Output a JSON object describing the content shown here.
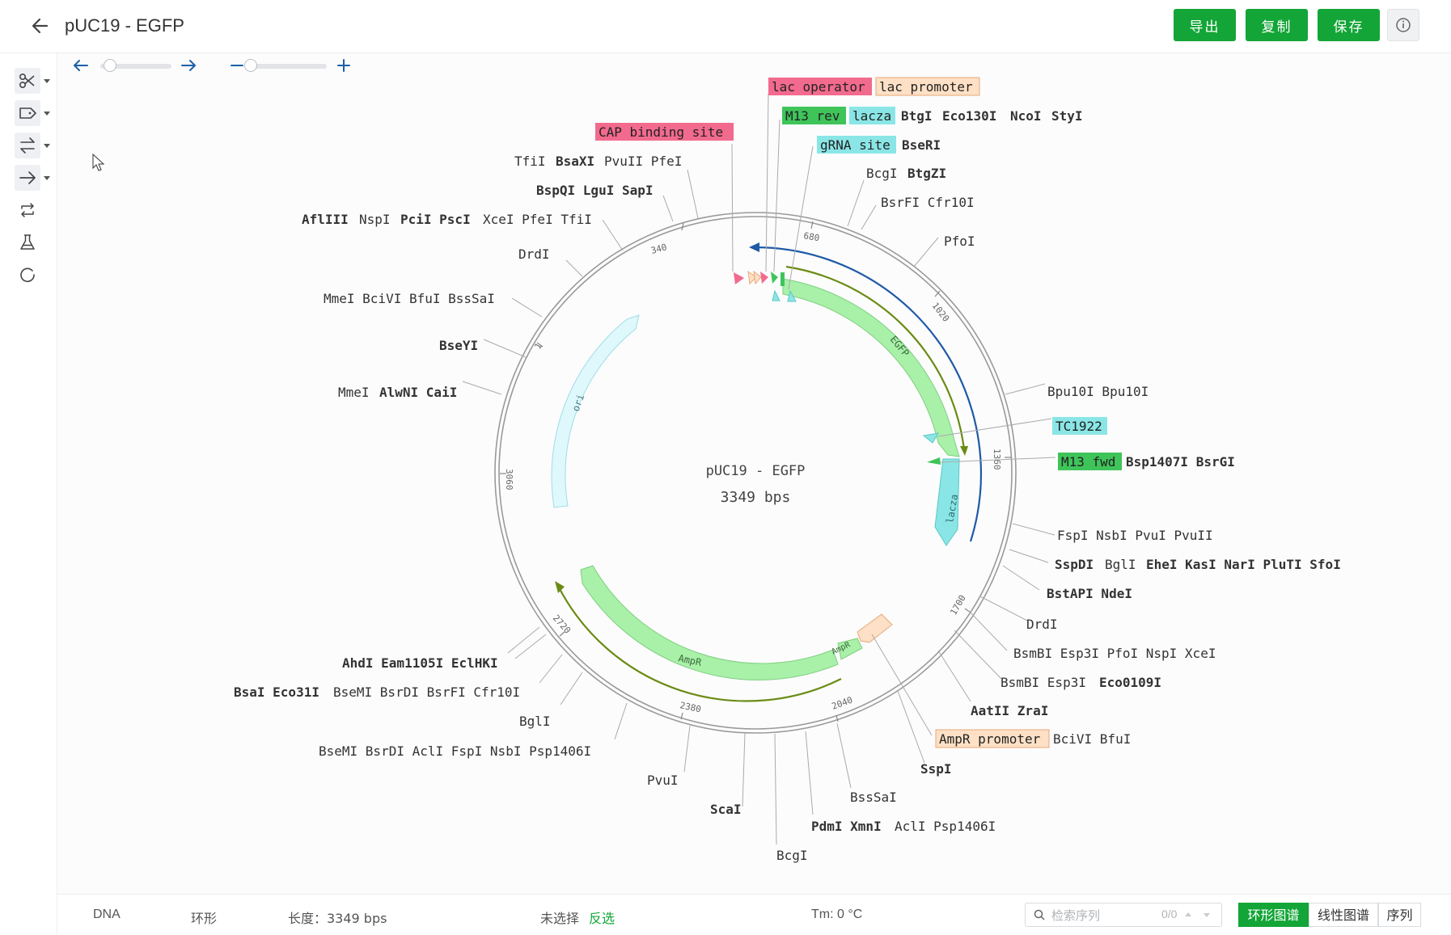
{
  "header": {
    "title": "pUC19 - EGFP",
    "export_label": "导出",
    "copy_label": "复制",
    "save_label": "保存"
  },
  "colors": {
    "primary": "#13a537",
    "lac_operator": "#f26a8d",
    "lac_promoter": "#fde0c5",
    "m13": "#3fc45a",
    "lacza": "#8ae6e6",
    "cap_binding": "#f26a8d",
    "grna": "#8ae6e6",
    "feature_green": "#a9f0a9",
    "ori": "#dff8fb",
    "primer_blue": "#1f5aa6",
    "primer_olive": "#6b8c14"
  },
  "map": {
    "name": "pUC19 - EGFP",
    "length_label": "3349 bps",
    "ticks": [
      "340",
      "680",
      "1020",
      "1360",
      "1700",
      "2040",
      "2380",
      "2720",
      "3060",
      "1"
    ],
    "features": [
      "EGFP",
      "lacza",
      "ori",
      "AmpR",
      "AmpR"
    ],
    "annotations": {
      "lac_operator": "lac operator",
      "lac_promoter": "lac promoter",
      "m13_rev": "M13 rev",
      "lacza": "lacza",
      "cap_binding": "CAP binding site",
      "grna": "gRNA site",
      "tc1922": "TC1922",
      "m13_fwd": "M13 fwd",
      "ampr_promoter": "AmpR promoter"
    },
    "enzymes": {
      "btgi": "BtgI",
      "eco130i": "Eco130I",
      "ncoi": "NcoI",
      "styi": "StyI",
      "bseri": "BseRI",
      "bcgi_top": "BcgI",
      "btgzi": "BtgZI",
      "bsrfi_cfr10i": "BsrFI Cfr10I",
      "pfoi_top": "PfoI",
      "tfii": "TfiI",
      "bsaxi": "BsaXI",
      "pvuii_pfei": "PvuII PfeI",
      "bspqi_lgui_sapi": "BspQI LguI SapI",
      "afliii": "AflIII",
      "nspi_top": "NspI",
      "pcii_psci": "PciI PscI",
      "xcei_pfei_tfii": "XceI PfeI TfiI",
      "drdi_left": "DrdI",
      "mmei_group": "MmeI BciVI BfuI BssSaI",
      "bseyi": "BseYI",
      "mmei_2": "MmeI",
      "alwni_caii": "AlwNI CaiI",
      "bpu10i": "Bpu10I Bpu10I",
      "bsp1407i_bsrgi": "Bsp1407I BsrGI",
      "fspi_group": "FspI NsbI PvuI PvuII",
      "sspdi": "SspDI",
      "bgli_r": "BglI",
      "ehei_group": "EheI KasI NarI PluTI SfoI",
      "bstapi_ndei": "BstAPI NdeI",
      "drdi_right": "DrdI",
      "bsmbi_group1": "BsmBI Esp3I PfoI NspI XceI",
      "bsmbi_esp3i": "BsmBI Esp3I",
      "eco0109i": "Eco0109I",
      "aatii_zrai": "AatII ZraI",
      "bcivi_bfui": "BciVI BfuI",
      "sspi": "SspI",
      "bsssai": "BssSaI",
      "pdmi_xmni": "PdmI XmnI",
      "acli_psp": "AclI Psp1406I",
      "bcgi_bottom": "BcgI",
      "scai": "ScaI",
      "pvui": "PvuI",
      "bsemi_group": "BseMI BsrDI AclI FspI NsbI Psp1406I",
      "bgli_left": "BglI",
      "bsai_eco31i": "BsaI Eco31I",
      "bsemi_bsrdi_group": "BseMI BsrDI BsrFI Cfr10I",
      "ahdi_group": "AhdI Eam1105I EclHKI"
    }
  },
  "footer": {
    "type": "DNA",
    "topology": "环形",
    "length": "长度：3349 bps",
    "selection": "未选择",
    "invert": "反选",
    "tm": "Tm: 0 °C",
    "search_placeholder": "检索序列",
    "search_count": "0/0",
    "view_circular": "环形图谱",
    "view_linear": "线性图谱",
    "view_sequence": "序列"
  }
}
